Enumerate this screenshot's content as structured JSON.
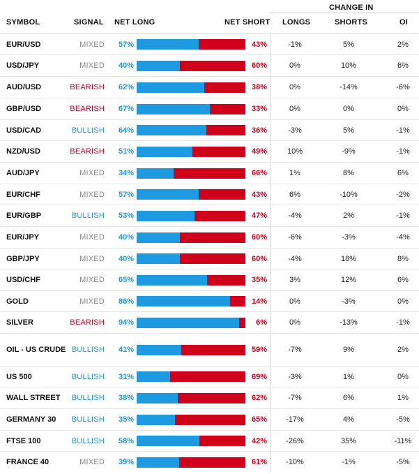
{
  "header": {
    "symbol": "SYMBOL",
    "signal": "SIGNAL",
    "net_long": "NET LONG",
    "net_short": "NET SHORT",
    "change_in": "CHANGE IN",
    "longs": "LONGS",
    "shorts": "SHORTS",
    "oi": "OI"
  },
  "colors": {
    "long": "#1e9ae0",
    "short": "#d0021b",
    "mixed": "#8a8a8a"
  },
  "rows": [
    {
      "symbol": "EUR/USD",
      "signal": "MIXED",
      "net_long": "57%",
      "net_short": "43%",
      "long_pct": 57,
      "longs": "-1%",
      "shorts": "5%",
      "oi": "2%"
    },
    {
      "symbol": "USD/JPY",
      "signal": "MIXED",
      "net_long": "40%",
      "net_short": "60%",
      "long_pct": 40,
      "longs": "0%",
      "shorts": "10%",
      "oi": "6%"
    },
    {
      "symbol": "AUD/USD",
      "signal": "BEARISH",
      "net_long": "62%",
      "net_short": "38%",
      "long_pct": 62,
      "longs": "0%",
      "shorts": "-14%",
      "oi": "-6%"
    },
    {
      "symbol": "GBP/USD",
      "signal": "BEARISH",
      "net_long": "67%",
      "net_short": "33%",
      "long_pct": 67,
      "longs": "0%",
      "shorts": "0%",
      "oi": "0%"
    },
    {
      "symbol": "USD/CAD",
      "signal": "BULLISH",
      "net_long": "64%",
      "net_short": "36%",
      "long_pct": 64,
      "longs": "-3%",
      "shorts": "5%",
      "oi": "-1%"
    },
    {
      "symbol": "NZD/USD",
      "signal": "BEARISH",
      "net_long": "51%",
      "net_short": "49%",
      "long_pct": 51,
      "longs": "10%",
      "shorts": "-9%",
      "oi": "-1%"
    },
    {
      "symbol": "AUD/JPY",
      "signal": "MIXED",
      "net_long": "34%",
      "net_short": "66%",
      "long_pct": 34,
      "longs": "1%",
      "shorts": "8%",
      "oi": "6%"
    },
    {
      "symbol": "EUR/CHF",
      "signal": "MIXED",
      "net_long": "57%",
      "net_short": "43%",
      "long_pct": 57,
      "longs": "6%",
      "shorts": "-10%",
      "oi": "-2%"
    },
    {
      "symbol": "EUR/GBP",
      "signal": "BULLISH",
      "net_long": "53%",
      "net_short": "47%",
      "long_pct": 53,
      "longs": "-4%",
      "shorts": "2%",
      "oi": "-1%"
    },
    {
      "symbol": "EUR/JPY",
      "signal": "MIXED",
      "net_long": "40%",
      "net_short": "60%",
      "long_pct": 40,
      "longs": "-6%",
      "shorts": "-3%",
      "oi": "-4%"
    },
    {
      "symbol": "GBP/JPY",
      "signal": "MIXED",
      "net_long": "40%",
      "net_short": "60%",
      "long_pct": 40,
      "longs": "-4%",
      "shorts": "18%",
      "oi": "8%"
    },
    {
      "symbol": "USD/CHF",
      "signal": "MIXED",
      "net_long": "65%",
      "net_short": "35%",
      "long_pct": 65,
      "longs": "3%",
      "shorts": "12%",
      "oi": "6%"
    },
    {
      "symbol": "GOLD",
      "signal": "MIXED",
      "net_long": "86%",
      "net_short": "14%",
      "long_pct": 86,
      "longs": "0%",
      "shorts": "-3%",
      "oi": "0%"
    },
    {
      "symbol": "SILVER",
      "signal": "BEARISH",
      "net_long": "94%",
      "net_short": "6%",
      "long_pct": 94,
      "longs": "0%",
      "shorts": "-13%",
      "oi": "-1%"
    },
    {
      "symbol": "OIL - US CRUDE",
      "signal": "BULLISH",
      "net_long": "41%",
      "net_short": "59%",
      "long_pct": 41,
      "longs": "-7%",
      "shorts": "9%",
      "oi": "2%"
    },
    {
      "symbol": "US 500",
      "signal": "BULLISH",
      "net_long": "31%",
      "net_short": "69%",
      "long_pct": 31,
      "longs": "-3%",
      "shorts": "1%",
      "oi": "0%"
    },
    {
      "symbol": "WALL STREET",
      "signal": "BULLISH",
      "net_long": "38%",
      "net_short": "62%",
      "long_pct": 38,
      "longs": "-7%",
      "shorts": "6%",
      "oi": "1%"
    },
    {
      "symbol": "GERMANY 30",
      "signal": "BULLISH",
      "net_long": "35%",
      "net_short": "65%",
      "long_pct": 35,
      "longs": "-17%",
      "shorts": "4%",
      "oi": "-5%"
    },
    {
      "symbol": "FTSE 100",
      "signal": "BULLISH",
      "net_long": "58%",
      "net_short": "42%",
      "long_pct": 58,
      "longs": "-26%",
      "shorts": "35%",
      "oi": "-11%"
    },
    {
      "symbol": "FRANCE 40",
      "signal": "MIXED",
      "net_long": "39%",
      "net_short": "61%",
      "long_pct": 39,
      "longs": "-10%",
      "shorts": "-1%",
      "oi": "-5%"
    }
  ]
}
